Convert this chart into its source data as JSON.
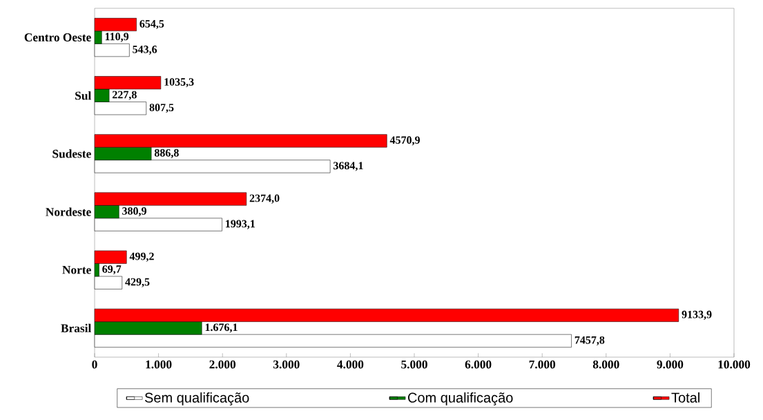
{
  "chart_data": {
    "type": "bar",
    "orientation": "horizontal",
    "categories": [
      "Centro Oeste",
      "Sul",
      "Sudeste",
      "Nordeste",
      "Norte",
      "Brasil"
    ],
    "series": [
      {
        "name": "Sem qualificação",
        "color": "#ffffff",
        "values": [
          543.6,
          807.5,
          3684.1,
          1993.1,
          429.5,
          7457.8
        ],
        "value_labels": [
          "543,6",
          "807,5",
          "3684,1",
          "1993,1",
          "429,5",
          "7457,8"
        ]
      },
      {
        "name": "Com qualificação",
        "color": "#008000",
        "values": [
          110.9,
          227.8,
          886.8,
          380.9,
          69.7,
          1676.1
        ],
        "value_labels": [
          "110,9",
          "227,8",
          "886,8",
          "380,9",
          "69,7",
          "1.676,1"
        ]
      },
      {
        "name": "Total",
        "color": "#ff0000",
        "values": [
          654.5,
          1035.3,
          4570.9,
          2374.0,
          499.2,
          9133.9
        ],
        "value_labels": [
          "654,5",
          "1035,3",
          "4570,9",
          "2374,0",
          "499,2",
          "9133,9"
        ]
      }
    ],
    "xlim": [
      0,
      10000
    ],
    "xticks": [
      0,
      {
        "value": 1000,
        "label": "1.000"
      },
      {
        "value": 2000,
        "label": "2.000"
      },
      {
        "value": 3000,
        "label": "3.000"
      },
      {
        "value": 4000,
        "label": "4.000"
      },
      {
        "value": 5000,
        "label": "5.000"
      },
      {
        "value": 6000,
        "label": "6.000"
      },
      {
        "value": 7000,
        "label": "7.000"
      },
      {
        "value": 8000,
        "label": "8.000"
      },
      {
        "value": 9000,
        "label": "9.000"
      },
      {
        "value": 10000,
        "label": "10.000"
      }
    ],
    "legend": "bottom",
    "grid": false
  }
}
